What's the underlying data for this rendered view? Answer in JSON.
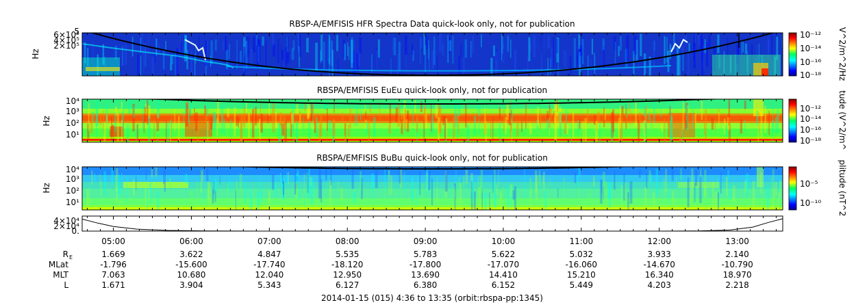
{
  "chart_data": {
    "type": "heatmap",
    "xaxis": {
      "range_hours": [
        4.6,
        13.583
      ],
      "ticks": [
        "05:00",
        "06:00",
        "07:00",
        "08:00",
        "09:00",
        "10:00",
        "11:00",
        "12:00",
        "13:00"
      ],
      "label": "2014-01-15 (015) 4:36 to 13:35 (orbit:rbspa-pp:1345)"
    },
    "panels": [
      {
        "title": "RBSP-A/EMFISIS  HFR Spectra Data quick-look only, not for publication",
        "ylabel": "Hz",
        "yticks": [
          "6×10⁵",
          "4×10⁵",
          "2×10⁵"
        ],
        "ytick_top": "5",
        "colorbar_label": "V^2/m^2/Hz",
        "colorbar_ticks": [
          "10⁻¹²",
          "10⁻¹⁴",
          "10⁻¹⁶",
          "10⁻¹⁸"
        ],
        "log_range": [
          -18,
          -12
        ]
      },
      {
        "title": "RBSPA/EMFISIS  EuEu quick-look only, not for publication",
        "ylabel": "Hz",
        "yticks": [
          "10⁴",
          "10³",
          "10²",
          "10¹"
        ],
        "colorbar_label": "tude (V^2/m^",
        "colorbar_ticks": [
          "10⁻¹²",
          "10⁻¹⁴",
          "10⁻¹⁶",
          "10⁻¹⁸"
        ],
        "log_range": [
          -18,
          -12
        ]
      },
      {
        "title": "RBSPA/EMFISIS  BuBu quick-look only, not for publication",
        "ylabel": "Hz",
        "yticks": [
          "10⁴",
          "10³",
          "10²",
          "10¹"
        ],
        "colorbar_label": "plitude (nT^2",
        "colorbar_ticks": [
          "10⁻⁵",
          "10⁻¹⁰"
        ],
        "log_range": [
          -12,
          -3
        ]
      },
      {
        "yticks": [
          "4×10⁴",
          "2×10⁴",
          "0."
        ],
        "line": [
          {
            "t": 4.6,
            "v": 36000
          },
          {
            "t": 4.8,
            "v": 24000
          },
          {
            "t": 5.0,
            "v": 14000
          },
          {
            "t": 5.3,
            "v": 6000
          },
          {
            "t": 5.7,
            "v": 2000
          },
          {
            "t": 6.2,
            "v": 500
          },
          {
            "t": 7.0,
            "v": 0
          },
          {
            "t": 12.0,
            "v": 0
          },
          {
            "t": 12.5,
            "v": 500
          },
          {
            "t": 12.9,
            "v": 3000
          },
          {
            "t": 13.2,
            "v": 12000
          },
          {
            "t": 13.4,
            "v": 26000
          },
          {
            "t": 13.583,
            "v": 37000
          }
        ]
      }
    ],
    "ephemeris": {
      "rows": [
        {
          "label": "R",
          "sub": "E",
          "values": [
            "1.669",
            "3.622",
            "4.847",
            "5.535",
            "5.783",
            "5.622",
            "5.032",
            "3.933",
            "2.140"
          ]
        },
        {
          "label": "MLat",
          "values": [
            "-1.796",
            "-15.600",
            "-17.740",
            "-18.120",
            "-17.800",
            "-17.070",
            "-16.060",
            "-14.670",
            "-10.790"
          ]
        },
        {
          "label": "MLT",
          "values": [
            "7.063",
            "10.680",
            "12.040",
            "12.950",
            "13.690",
            "14.410",
            "15.210",
            "16.340",
            "18.970"
          ]
        },
        {
          "label": "L",
          "values": [
            "1.671",
            "3.904",
            "5.343",
            "6.127",
            "6.380",
            "6.152",
            "5.449",
            "4.203",
            "2.218"
          ]
        }
      ]
    }
  }
}
